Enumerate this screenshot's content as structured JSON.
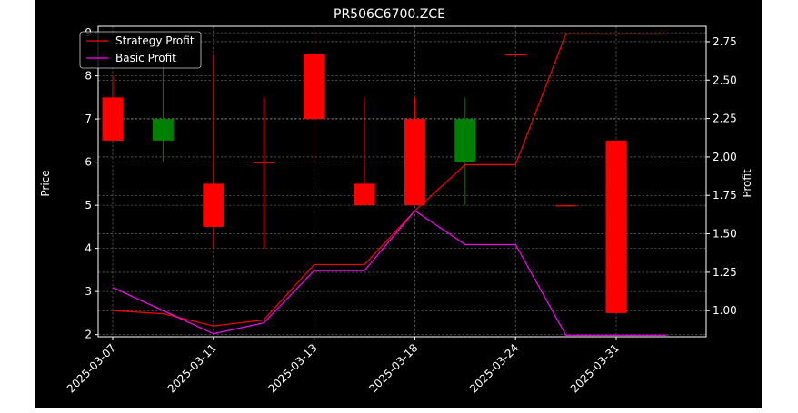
{
  "chart_data": {
    "type": "candlestick",
    "title": "PR506C6700.ZCE",
    "ylabel_left": "Price",
    "ylabel_right": "Profit",
    "xlabel": "",
    "ylim_left": [
      1.95,
      9.15
    ],
    "ylim_right": [
      0.83,
      2.85
    ],
    "grid": true,
    "legend_position": "upper-left",
    "x_tick_labels": [
      "2025-03-07",
      "2025-03-11",
      "2025-03-13",
      "2025-03-18",
      "2025-03-24",
      "2025-03-31"
    ],
    "x_tick_indices": [
      0,
      2,
      4,
      6,
      8,
      10
    ],
    "candles": [
      {
        "open": 7.5,
        "close": 6.5,
        "high": 8.0,
        "low": 6.5
      },
      {
        "open": 6.5,
        "close": 7.0,
        "high": 8.5,
        "low": 6.0
      },
      {
        "open": 5.5,
        "close": 4.5,
        "high": 8.5,
        "low": 4.0
      },
      {
        "open": 6.0,
        "close": 6.0,
        "high": 7.5,
        "low": 4.0
      },
      {
        "open": 8.5,
        "close": 7.0,
        "high": 9.0,
        "low": 6.0
      },
      {
        "open": 5.5,
        "close": 5.0,
        "high": 7.5,
        "low": 5.0
      },
      {
        "open": 7.0,
        "close": 5.0,
        "high": 7.5,
        "low": 5.0
      },
      {
        "open": 6.0,
        "close": 7.0,
        "high": 7.5,
        "low": 5.0
      },
      {
        "open": 8.5,
        "close": 8.5,
        "high": 8.5,
        "low": 8.5
      },
      {
        "open": 5.0,
        "close": 5.0,
        "high": 5.0,
        "low": 5.0
      },
      {
        "open": 6.5,
        "close": 2.5,
        "high": 6.5,
        "low": 2.5
      }
    ],
    "series": [
      {
        "name": "Strategy Profit",
        "color": "#ff0000",
        "axis": "right",
        "x": [
          0,
          1,
          2,
          3,
          4,
          5,
          6,
          7,
          8,
          9,
          10,
          11
        ],
        "values": [
          1.0,
          0.98,
          0.9,
          0.94,
          1.3,
          1.3,
          1.65,
          1.95,
          1.95,
          2.8,
          2.8,
          2.8
        ]
      },
      {
        "name": "Basic Profit",
        "color": "#ff00ff",
        "axis": "right",
        "x": [
          0,
          1,
          2,
          3,
          4,
          5,
          6,
          7,
          8,
          9,
          10,
          11
        ],
        "values": [
          1.15,
          1.0,
          0.85,
          0.92,
          1.26,
          1.26,
          1.65,
          1.43,
          1.43,
          0.84,
          0.84,
          0.84
        ]
      }
    ],
    "colors": {
      "up": "#008000",
      "down": "#ff0000",
      "axis": "#ffffff",
      "grid": "#7a7a7a",
      "background": "#000000"
    }
  }
}
